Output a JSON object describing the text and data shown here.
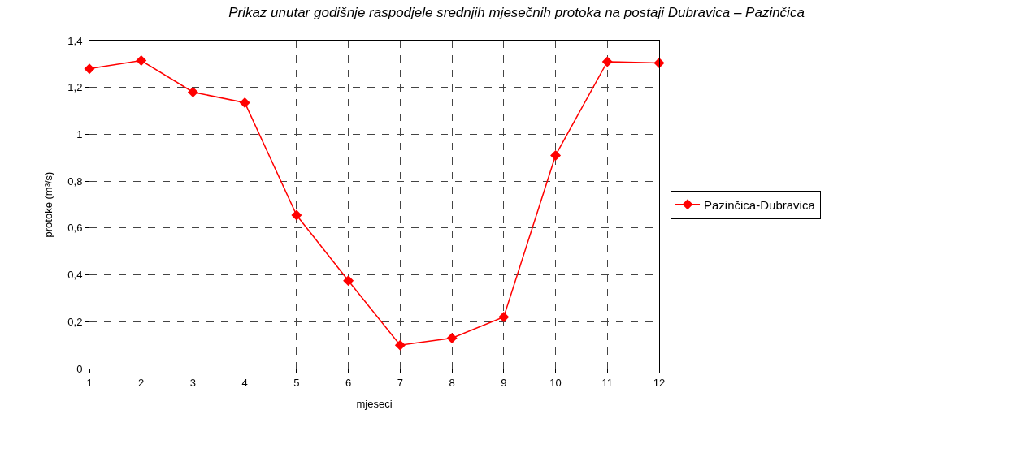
{
  "chart_data": {
    "type": "line",
    "title": "Prikaz unutar godišnje raspodjele srednjih mjesečnih protoka na postaji Dubravica – Pazinčica",
    "x": [
      1,
      2,
      3,
      4,
      5,
      6,
      7,
      8,
      9,
      10,
      11,
      12
    ],
    "series": [
      {
        "name": "Pazinčica-Dubravica",
        "color": "#ff0000",
        "values": [
          1.28,
          1.315,
          1.18,
          1.135,
          0.655,
          0.375,
          0.1,
          0.13,
          0.22,
          0.91,
          1.31,
          1.305
        ]
      }
    ],
    "xlabel": "mjeseci",
    "ylabel": "protoke (m³/s)",
    "xlim": [
      1,
      12
    ],
    "xticks": [
      1,
      2,
      3,
      4,
      5,
      6,
      7,
      8,
      9,
      10,
      11,
      12
    ],
    "ylim": [
      0,
      1.4
    ],
    "yticks": [
      {
        "value": 0,
        "label": "0"
      },
      {
        "value": 0.2,
        "label": "0,2"
      },
      {
        "value": 0.4,
        "label": "0,4"
      },
      {
        "value": 0.6,
        "label": "0,6"
      },
      {
        "value": 0.8,
        "label": "0,8"
      },
      {
        "value": 1,
        "label": "1"
      },
      {
        "value": 1.2,
        "label": "1,2"
      },
      {
        "value": 1.4,
        "label": "1,4"
      }
    ],
    "grid": true,
    "legend": "right",
    "marker": "diamond",
    "line_style": "solid"
  }
}
